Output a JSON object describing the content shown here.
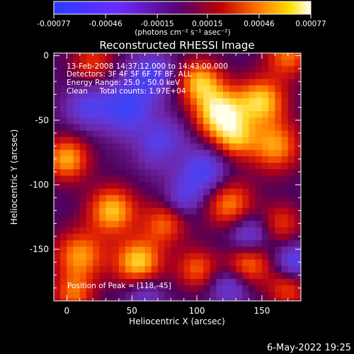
{
  "colorbar": {
    "tick_labels": [
      "-0.00077",
      "-0.00046",
      "-0.00015",
      "0.00015",
      "0.00046",
      "0.00077"
    ],
    "units_label": "(photons cm⁻² s⁻¹ asec⁻²)",
    "range": [
      -0.00077,
      0.00077
    ]
  },
  "chart_data": {
    "type": "heatmap",
    "title": "Reconstructed RHESSI Image",
    "xlabel": "Heliocentric X (arcsec)",
    "ylabel": "Heliocentric Y (arcsec)",
    "xlim": [
      -10,
      180
    ],
    "ylim": [
      -190,
      2
    ],
    "x_ticks": [
      0,
      50,
      100,
      150
    ],
    "y_ticks": [
      0,
      -50,
      -100,
      -150
    ],
    "info_lines": [
      "13-Feb-2008 14:37:12.000 to 14:43:00.000",
      "Detectors: 3F 4F 5F 6F 7F 8F, ALL",
      "Energy Range: 25.0 - 50.0 keV",
      "Clean     Total counts: 1.97E+04"
    ],
    "peak_label": "Position of Peak = [118,-45]",
    "peak": [
      118,
      -45
    ],
    "hot_spots": [
      {
        "x": 118,
        "y": -45,
        "v": 1.0,
        "s": 14
      },
      {
        "x": 102,
        "y": -20,
        "v": 0.75,
        "s": 12
      },
      {
        "x": 150,
        "y": -35,
        "v": 0.8,
        "s": 13
      },
      {
        "x": 160,
        "y": -70,
        "v": 0.7,
        "s": 14
      },
      {
        "x": 170,
        "y": 0,
        "v": 0.6,
        "s": 12
      },
      {
        "x": 130,
        "y": -65,
        "v": 0.55,
        "s": 11
      },
      {
        "x": 0,
        "y": -80,
        "v": 0.75,
        "s": 12
      },
      {
        "x": 35,
        "y": -120,
        "v": 0.8,
        "s": 13
      },
      {
        "x": 10,
        "y": -155,
        "v": 0.7,
        "s": 14
      },
      {
        "x": 55,
        "y": -160,
        "v": 0.85,
        "s": 13
      },
      {
        "x": 75,
        "y": -130,
        "v": 0.55,
        "s": 12
      },
      {
        "x": 125,
        "y": -115,
        "v": 0.65,
        "s": 13
      },
      {
        "x": 140,
        "y": -160,
        "v": 0.65,
        "s": 12
      },
      {
        "x": 100,
        "y": -165,
        "v": 0.55,
        "s": 11
      },
      {
        "x": 20,
        "y": -5,
        "v": 0.45,
        "s": 12
      },
      {
        "x": 165,
        "y": -130,
        "v": 0.45,
        "s": 11
      },
      {
        "x": 80,
        "y": -75,
        "v": 0.3,
        "s": 10
      },
      {
        "x": 5,
        "y": -185,
        "v": 0.55,
        "s": 11
      },
      {
        "x": 170,
        "y": -180,
        "v": 0.5,
        "s": 11
      }
    ],
    "cold_spots": [
      {
        "x": 45,
        "y": -40,
        "v": -0.75,
        "s": 14
      },
      {
        "x": 75,
        "y": -70,
        "v": -0.7,
        "s": 13
      },
      {
        "x": 65,
        "y": -15,
        "v": -0.6,
        "s": 12
      },
      {
        "x": 105,
        "y": -90,
        "v": -0.65,
        "s": 12
      },
      {
        "x": 140,
        "y": -140,
        "v": -0.55,
        "s": 11
      },
      {
        "x": 175,
        "y": -160,
        "v": -0.6,
        "s": 10
      },
      {
        "x": 125,
        "y": -180,
        "v": -0.45,
        "s": 10
      },
      {
        "x": 15,
        "y": -40,
        "v": -0.5,
        "s": 11
      },
      {
        "x": 90,
        "y": -110,
        "v": -0.45,
        "s": 10
      },
      {
        "x": 60,
        "y": -185,
        "v": -0.4,
        "s": 10
      }
    ]
  },
  "footer": {
    "date": "6-May-2022 19:25"
  }
}
